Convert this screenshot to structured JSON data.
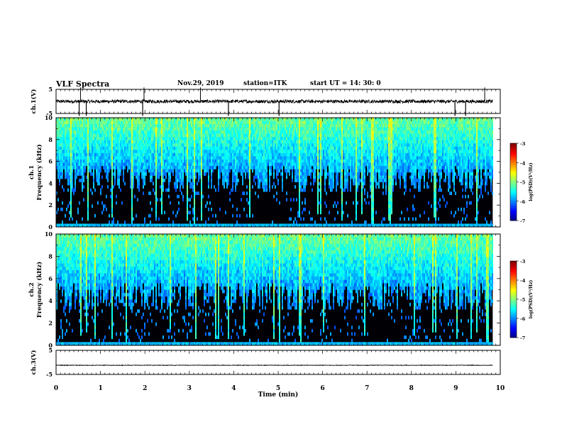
{
  "header": {
    "title": "VLF Spectra",
    "date": "Nov.29, 2019",
    "station": "station=ITK",
    "start": "start  UT =  14: 30: 0"
  },
  "chart_data": {
    "type": "heatmap",
    "xlabel": "Time  (min)",
    "xlim": [
      0,
      10
    ],
    "xticks": [
      "0",
      "1",
      "2",
      "3",
      "4",
      "5",
      "6",
      "7",
      "8",
      "9",
      "10"
    ],
    "panels": [
      {
        "label": "ch.1(V)",
        "type": "line",
        "ylim": [
          -5,
          5
        ],
        "yticks": [
          "5",
          "-5"
        ],
        "baseline": 0,
        "dropouts_min": [
          0.52,
          0.68,
          1.95,
          3.88,
          5.02,
          8.98,
          9.22
        ],
        "spikes_up_min": [
          0.55,
          1.98,
          3.25,
          9.65
        ]
      },
      {
        "label": "ch.1\nFrequency  (kHz)",
        "type": "heatmap",
        "ylim": [
          0,
          10
        ],
        "yticks": [
          "0",
          "2",
          "4",
          "6",
          "8",
          "10"
        ],
        "colorbar": {
          "label": "log(PSD)(V²/Hz)",
          "range": [
            -7,
            -3
          ],
          "ticks": [
            "-3",
            "-4",
            "-5",
            "-6",
            "-7"
          ]
        }
      },
      {
        "label": "ch.2\nFrequency  (kHz)",
        "type": "heatmap",
        "ylim": [
          0,
          10
        ],
        "yticks": [
          "0",
          "2",
          "4",
          "6",
          "8",
          "10"
        ],
        "colorbar": {
          "label": "log(PSD)(V²/Hz)",
          "range": [
            -7,
            -3
          ],
          "ticks": [
            "-3",
            "-4",
            "-5",
            "-6",
            "-7"
          ]
        }
      },
      {
        "label": "ch.3(V)",
        "type": "line",
        "ylim": [
          -5,
          5
        ],
        "yticks": [
          "5",
          "-5"
        ],
        "baseline": -1.2
      }
    ]
  }
}
